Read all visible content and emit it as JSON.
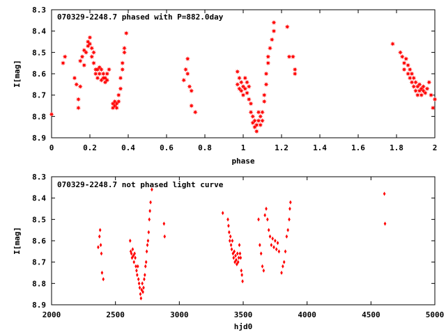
{
  "chart_data": [
    {
      "type": "scatter",
      "title": "070329-2248.7 phased with P=882.0day",
      "xlabel": "phase",
      "ylabel": "I[mag]",
      "xlim": [
        0,
        2
      ],
      "ylim": [
        8.9,
        8.3
      ],
      "y_inverted": true,
      "grid": false,
      "xticks": [
        "0",
        "0.2",
        "0.4",
        "0.6",
        "0.8",
        "1",
        "1.2",
        "1.4",
        "1.6",
        "1.8",
        "2"
      ],
      "yticks": [
        "8.3",
        "8.4",
        "8.5",
        "8.6",
        "8.7",
        "8.8",
        "8.9"
      ],
      "marker": "star",
      "color": "#ff0000",
      "points": [
        [
          0.0,
          8.79
        ],
        [
          0.06,
          8.55
        ],
        [
          0.07,
          8.52
        ],
        [
          0.12,
          8.62
        ],
        [
          0.13,
          8.65
        ],
        [
          0.14,
          8.72
        ],
        [
          0.14,
          8.76
        ],
        [
          0.15,
          8.66
        ],
        [
          0.15,
          8.54
        ],
        [
          0.16,
          8.52
        ],
        [
          0.17,
          8.49
        ],
        [
          0.17,
          8.56
        ],
        [
          0.18,
          8.5
        ],
        [
          0.19,
          8.47
        ],
        [
          0.19,
          8.45
        ],
        [
          0.2,
          8.43
        ],
        [
          0.2,
          8.46
        ],
        [
          0.21,
          8.48
        ],
        [
          0.21,
          8.52
        ],
        [
          0.22,
          8.5
        ],
        [
          0.22,
          8.55
        ],
        [
          0.23,
          8.58
        ],
        [
          0.23,
          8.6
        ],
        [
          0.24,
          8.58
        ],
        [
          0.24,
          8.62
        ],
        [
          0.25,
          8.57
        ],
        [
          0.25,
          8.6
        ],
        [
          0.26,
          8.63
        ],
        [
          0.26,
          8.58
        ],
        [
          0.27,
          8.62
        ],
        [
          0.27,
          8.6
        ],
        [
          0.28,
          8.64
        ],
        [
          0.28,
          8.62
        ],
        [
          0.29,
          8.6
        ],
        [
          0.29,
          8.63
        ],
        [
          0.3,
          8.58
        ],
        [
          0.32,
          8.74
        ],
        [
          0.32,
          8.76
        ],
        [
          0.33,
          8.73
        ],
        [
          0.33,
          8.75
        ],
        [
          0.34,
          8.74
        ],
        [
          0.34,
          8.76
        ],
        [
          0.35,
          8.73
        ],
        [
          0.35,
          8.7
        ],
        [
          0.36,
          8.67
        ],
        [
          0.36,
          8.62
        ],
        [
          0.37,
          8.58
        ],
        [
          0.37,
          8.55
        ],
        [
          0.38,
          8.5
        ],
        [
          0.38,
          8.48
        ],
        [
          0.39,
          8.41
        ],
        [
          0.69,
          8.63
        ],
        [
          0.7,
          8.58
        ],
        [
          0.71,
          8.53
        ],
        [
          0.71,
          8.6
        ],
        [
          0.72,
          8.66
        ],
        [
          0.73,
          8.68
        ],
        [
          0.73,
          8.75
        ],
        [
          0.75,
          8.78
        ],
        [
          0.97,
          8.59
        ],
        [
          0.97,
          8.65
        ],
        [
          0.98,
          8.62
        ],
        [
          0.98,
          8.67
        ],
        [
          0.99,
          8.64
        ],
        [
          0.99,
          8.68
        ],
        [
          1.0,
          8.66
        ],
        [
          1.0,
          8.7
        ],
        [
          1.01,
          8.62
        ],
        [
          1.01,
          8.67
        ],
        [
          1.02,
          8.64
        ],
        [
          1.02,
          8.69
        ],
        [
          1.03,
          8.66
        ],
        [
          1.03,
          8.72
        ],
        [
          1.04,
          8.74
        ],
        [
          1.04,
          8.78
        ],
        [
          1.05,
          8.8
        ],
        [
          1.05,
          8.83
        ],
        [
          1.06,
          8.85
        ],
        [
          1.06,
          8.82
        ],
        [
          1.07,
          8.87
        ],
        [
          1.07,
          8.84
        ],
        [
          1.08,
          8.82
        ],
        [
          1.08,
          8.78
        ],
        [
          1.09,
          8.8
        ],
        [
          1.09,
          8.84
        ],
        [
          1.1,
          8.82
        ],
        [
          1.1,
          8.78
        ],
        [
          1.11,
          8.73
        ],
        [
          1.11,
          8.7
        ],
        [
          1.12,
          8.65
        ],
        [
          1.12,
          8.6
        ],
        [
          1.13,
          8.55
        ],
        [
          1.13,
          8.52
        ],
        [
          1.14,
          8.48
        ],
        [
          1.15,
          8.44
        ],
        [
          1.16,
          8.4
        ],
        [
          1.16,
          8.36
        ],
        [
          1.23,
          8.38
        ],
        [
          1.24,
          8.52
        ],
        [
          1.26,
          8.52
        ],
        [
          1.27,
          8.58
        ],
        [
          1.27,
          8.6
        ],
        [
          1.78,
          8.46
        ],
        [
          1.82,
          8.5
        ],
        [
          1.83,
          8.52
        ],
        [
          1.84,
          8.55
        ],
        [
          1.84,
          8.58
        ],
        [
          1.85,
          8.53
        ],
        [
          1.86,
          8.56
        ],
        [
          1.86,
          8.6
        ],
        [
          1.87,
          8.62
        ],
        [
          1.87,
          8.58
        ],
        [
          1.88,
          8.6
        ],
        [
          1.88,
          8.64
        ],
        [
          1.89,
          8.66
        ],
        [
          1.89,
          8.62
        ],
        [
          1.9,
          8.64
        ],
        [
          1.9,
          8.68
        ],
        [
          1.91,
          8.66
        ],
        [
          1.91,
          8.7
        ],
        [
          1.92,
          8.68
        ],
        [
          1.92,
          8.65
        ],
        [
          1.93,
          8.67
        ],
        [
          1.93,
          8.7
        ],
        [
          1.94,
          8.68
        ],
        [
          1.94,
          8.66
        ],
        [
          1.95,
          8.69
        ],
        [
          1.96,
          8.67
        ],
        [
          1.97,
          8.64
        ],
        [
          1.98,
          8.7
        ],
        [
          1.99,
          8.76
        ],
        [
          2.0,
          8.72
        ]
      ]
    },
    {
      "type": "scatter",
      "title": "070329-2248.7 not phased light curve",
      "xlabel": "hjd0",
      "ylabel": "I[mag]",
      "xlim": [
        2000,
        5000
      ],
      "ylim": [
        8.9,
        8.3
      ],
      "y_inverted": true,
      "grid": false,
      "xticks": [
        "2000",
        "2500",
        "3000",
        "3500",
        "4000",
        "4500",
        "5000"
      ],
      "yticks": [
        "8.3",
        "8.4",
        "8.5",
        "8.6",
        "8.7",
        "8.8",
        "8.9"
      ],
      "marker": "diamond",
      "color": "#ff0000",
      "points": [
        [
          2365,
          8.63
        ],
        [
          2375,
          8.58
        ],
        [
          2380,
          8.55
        ],
        [
          2385,
          8.62
        ],
        [
          2390,
          8.66
        ],
        [
          2395,
          8.75
        ],
        [
          2405,
          8.78
        ],
        [
          2615,
          8.6
        ],
        [
          2620,
          8.65
        ],
        [
          2625,
          8.66
        ],
        [
          2630,
          8.68
        ],
        [
          2635,
          8.64
        ],
        [
          2640,
          8.67
        ],
        [
          2645,
          8.7
        ],
        [
          2650,
          8.66
        ],
        [
          2655,
          8.68
        ],
        [
          2660,
          8.72
        ],
        [
          2665,
          8.74
        ],
        [
          2670,
          8.76
        ],
        [
          2675,
          8.72
        ],
        [
          2680,
          8.78
        ],
        [
          2685,
          8.8
        ],
        [
          2690,
          8.82
        ],
        [
          2695,
          8.85
        ],
        [
          2700,
          8.87
        ],
        [
          2705,
          8.83
        ],
        [
          2710,
          8.8
        ],
        [
          2715,
          8.84
        ],
        [
          2720,
          8.82
        ],
        [
          2725,
          8.78
        ],
        [
          2730,
          8.76
        ],
        [
          2735,
          8.72
        ],
        [
          2740,
          8.7
        ],
        [
          2745,
          8.65
        ],
        [
          2750,
          8.62
        ],
        [
          2755,
          8.6
        ],
        [
          2760,
          8.56
        ],
        [
          2765,
          8.5
        ],
        [
          2770,
          8.46
        ],
        [
          2775,
          8.42
        ],
        [
          2785,
          8.36
        ],
        [
          2880,
          8.52
        ],
        [
          2885,
          8.58
        ],
        [
          3340,
          8.47
        ],
        [
          3380,
          8.5
        ],
        [
          3385,
          8.53
        ],
        [
          3390,
          8.56
        ],
        [
          3395,
          8.6
        ],
        [
          3400,
          8.58
        ],
        [
          3405,
          8.62
        ],
        [
          3410,
          8.64
        ],
        [
          3415,
          8.6
        ],
        [
          3420,
          8.66
        ],
        [
          3425,
          8.68
        ],
        [
          3430,
          8.65
        ],
        [
          3435,
          8.7
        ],
        [
          3440,
          8.67
        ],
        [
          3445,
          8.69
        ],
        [
          3450,
          8.71
        ],
        [
          3455,
          8.66
        ],
        [
          3460,
          8.7
        ],
        [
          3465,
          8.68
        ],
        [
          3470,
          8.62
        ],
        [
          3475,
          8.66
        ],
        [
          3480,
          8.68
        ],
        [
          3485,
          8.74
        ],
        [
          3490,
          8.76
        ],
        [
          3495,
          8.79
        ],
        [
          3620,
          8.5
        ],
        [
          3630,
          8.62
        ],
        [
          3640,
          8.66
        ],
        [
          3650,
          8.72
        ],
        [
          3660,
          8.74
        ],
        [
          3670,
          8.48
        ],
        [
          3680,
          8.45
        ],
        [
          3690,
          8.5
        ],
        [
          3700,
          8.55
        ],
        [
          3710,
          8.58
        ],
        [
          3720,
          8.62
        ],
        [
          3730,
          8.59
        ],
        [
          3740,
          8.63
        ],
        [
          3750,
          8.6
        ],
        [
          3760,
          8.64
        ],
        [
          3770,
          8.61
        ],
        [
          3780,
          8.65
        ],
        [
          3800,
          8.75
        ],
        [
          3810,
          8.72
        ],
        [
          3820,
          8.7
        ],
        [
          3830,
          8.65
        ],
        [
          3840,
          8.58
        ],
        [
          3850,
          8.55
        ],
        [
          3860,
          8.5
        ],
        [
          3865,
          8.45
        ],
        [
          3870,
          8.42
        ],
        [
          4605,
          8.38
        ],
        [
          4610,
          8.52
        ]
      ]
    }
  ]
}
